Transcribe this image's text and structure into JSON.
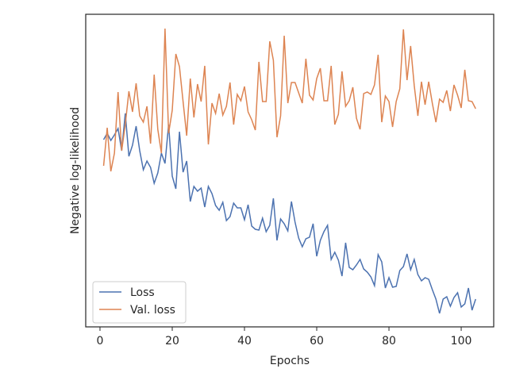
{
  "chart_data": {
    "type": "line",
    "x_label": "Epochs",
    "y_label": "Negative log-likelihood",
    "x": [
      1,
      2,
      3,
      4,
      5,
      6,
      7,
      8,
      9,
      10,
      11,
      12,
      13,
      14,
      15,
      16,
      17,
      18,
      19,
      20,
      21,
      22,
      23,
      24,
      25,
      26,
      27,
      28,
      29,
      30,
      31,
      32,
      33,
      34,
      35,
      36,
      37,
      38,
      39,
      40,
      41,
      42,
      43,
      44,
      45,
      46,
      47,
      48,
      49,
      50,
      51,
      52,
      53,
      54,
      55,
      56,
      57,
      58,
      59,
      60,
      61,
      62,
      63,
      64,
      65,
      66,
      67,
      68,
      69,
      70,
      71,
      72,
      73,
      74,
      75,
      76,
      77,
      78,
      79,
      80,
      81,
      82,
      83,
      84,
      85,
      86,
      87,
      88,
      89,
      90,
      91,
      92,
      93,
      94,
      95,
      96,
      97,
      98,
      99,
      100,
      101,
      102,
      103,
      104
    ],
    "series": [
      {
        "name": "Loss",
        "color": "#4c72b0",
        "values": [
          236,
          244,
          235,
          242,
          250,
          222,
          269,
          215,
          229,
          253,
          222,
          198,
          209,
          201,
          181,
          194,
          219,
          206,
          255,
          190,
          174,
          246,
          195,
          209,
          158,
          177,
          171,
          175,
          151,
          177,
          168,
          153,
          147,
          157,
          134,
          139,
          156,
          150,
          150,
          135,
          154,
          127,
          123,
          122,
          137,
          120,
          128,
          162,
          109,
          136,
          130,
          121,
          158,
          132,
          112,
          101,
          111,
          113,
          130,
          89,
          109,
          120,
          128,
          85,
          94,
          84,
          64,
          106,
          75,
          72,
          78,
          85,
          73,
          69,
          63,
          52,
          91,
          82,
          49,
          62,
          50,
          51,
          71,
          76,
          92,
          72,
          85,
          66,
          58,
          62,
          60,
          47,
          35,
          17,
          35,
          38,
          26,
          37,
          43,
          25,
          29,
          49,
          21,
          35
        ]
      },
      {
        "name": "Val. loss",
        "color": "#dd8452",
        "values": [
          203,
          251,
          196,
          219,
          296,
          222,
          255,
          297,
          271,
          307,
          266,
          258,
          278,
          231,
          318,
          249,
          219,
          376,
          244,
          273,
          344,
          328,
          284,
          241,
          313,
          264,
          306,
          284,
          329,
          230,
          282,
          269,
          294,
          267,
          278,
          308,
          255,
          293,
          285,
          303,
          271,
          261,
          248,
          334,
          284,
          284,
          360,
          336,
          239,
          266,
          367,
          282,
          308,
          308,
          295,
          282,
          338,
          292,
          286,
          313,
          326,
          285,
          285,
          329,
          255,
          268,
          322,
          278,
          285,
          302,
          263,
          249,
          294,
          296,
          293,
          305,
          343,
          258,
          291,
          284,
          252,
          284,
          300,
          375,
          311,
          354,
          304,
          266,
          309,
          280,
          309,
          282,
          258,
          287,
          283,
          298,
          272,
          305,
          292,
          276,
          324,
          285,
          284,
          275
        ]
      }
    ],
    "xlim": [
      -3.95,
      109.0
    ],
    "xticks": [
      0,
      20,
      40,
      60,
      80,
      100
    ],
    "ylim": [
      0,
      394
    ],
    "legend": "lower left"
  }
}
